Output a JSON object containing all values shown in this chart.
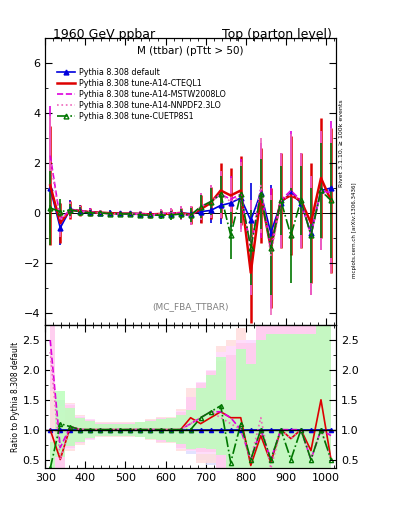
{
  "title_left": "1960 GeV ppbar",
  "title_right": "Top (parton level)",
  "plot_title": "M (ttbar) (pTtt > 50)",
  "watermark": "(MC_FBA_TTBAR)",
  "right_label_top": "Rivet 3.1.10, ≥ 100k events",
  "right_label_bot": "mcplots.cern.ch [arXiv:1306.3436]",
  "ylabel_ratio": "Ratio to Pythia 8.308 default",
  "ylim_main": [
    -4.5,
    7.0
  ],
  "ylim_ratio": [
    0.35,
    2.75
  ],
  "xlim": [
    300,
    1025
  ],
  "yticks_main": [
    -4,
    -2,
    0,
    2,
    4,
    6
  ],
  "yticks_ratio": [
    0.5,
    1.0,
    1.5,
    2.0,
    2.5
  ],
  "x_edges": [
    300,
    325,
    350,
    375,
    400,
    425,
    450,
    475,
    500,
    525,
    550,
    575,
    600,
    625,
    650,
    675,
    700,
    725,
    750,
    775,
    800,
    825,
    850,
    875,
    900,
    925,
    950,
    975,
    1000,
    1025
  ],
  "series": [
    {
      "label": "Pythia 8.308 default",
      "color": "#0000dd",
      "linestyle": "-",
      "marker": "^",
      "fillstyle": "full",
      "markersize": 3.5,
      "linewidth": 1.2,
      "values": [
        1.0,
        -0.6,
        0.15,
        0.08,
        0.03,
        0.01,
        0.0,
        -0.02,
        -0.02,
        -0.03,
        -0.05,
        -0.04,
        -0.03,
        0.0,
        -0.03,
        0.05,
        0.1,
        0.3,
        0.4,
        0.6,
        -0.3,
        0.8,
        -0.8,
        0.4,
        0.8,
        0.4,
        -0.8,
        0.9,
        1.0
      ],
      "errors": [
        1.8,
        0.7,
        0.35,
        0.22,
        0.16,
        0.11,
        0.1,
        0.1,
        0.1,
        0.11,
        0.14,
        0.14,
        0.18,
        0.18,
        0.28,
        0.45,
        0.5,
        0.75,
        0.95,
        1.15,
        1.5,
        1.5,
        1.9,
        1.4,
        1.9,
        1.4,
        1.9,
        1.9,
        2.3
      ]
    },
    {
      "label": "Pythia 8.308 tune-A14-CTEQL1",
      "color": "#dd0000",
      "linestyle": "-",
      "marker": null,
      "markersize": 0,
      "linewidth": 1.8,
      "values": [
        1.1,
        -0.4,
        0.12,
        0.08,
        0.03,
        0.01,
        -0.01,
        -0.03,
        -0.03,
        -0.04,
        -0.06,
        -0.04,
        -0.03,
        0.0,
        -0.08,
        0.15,
        0.4,
        0.9,
        0.7,
        0.9,
        -2.4,
        0.7,
        -1.4,
        0.5,
        0.7,
        0.5,
        -0.4,
        1.4,
        0.5
      ],
      "errors": [
        2.4,
        0.8,
        0.35,
        0.22,
        0.16,
        0.11,
        0.1,
        0.1,
        0.1,
        0.11,
        0.14,
        0.14,
        0.18,
        0.18,
        0.35,
        0.55,
        0.65,
        1.1,
        1.1,
        1.4,
        2.0,
        1.9,
        2.4,
        1.9,
        2.4,
        1.9,
        2.4,
        2.4,
        2.9
      ]
    },
    {
      "label": "Pythia 8.308 tune-A14-MSTW2008LO",
      "color": "#dd00dd",
      "linestyle": "--",
      "marker": null,
      "markersize": 0,
      "linewidth": 1.2,
      "values": [
        2.3,
        -0.25,
        0.12,
        0.08,
        0.03,
        0.0,
        -0.03,
        -0.04,
        -0.04,
        -0.04,
        -0.08,
        -0.04,
        0.0,
        0.0,
        -0.12,
        0.25,
        0.45,
        0.75,
        0.55,
        0.75,
        -1.4,
        0.9,
        -1.4,
        0.5,
        0.9,
        0.5,
        -0.9,
        0.9,
        0.8
      ],
      "errors": [
        2.0,
        0.65,
        0.32,
        0.2,
        0.15,
        0.1,
        0.1,
        0.1,
        0.1,
        0.1,
        0.14,
        0.18,
        0.18,
        0.28,
        0.38,
        0.55,
        0.65,
        0.95,
        0.95,
        1.4,
        1.9,
        1.9,
        2.4,
        1.9,
        2.4,
        1.9,
        2.4,
        2.4,
        2.9
      ]
    },
    {
      "label": "Pythia 8.308 tune-A14-NNPDF2.3LO",
      "color": "#ee66bb",
      "linestyle": ":",
      "marker": null,
      "markersize": 0,
      "linewidth": 1.2,
      "values": [
        2.1,
        -0.3,
        0.12,
        0.08,
        0.02,
        0.0,
        -0.03,
        -0.04,
        -0.04,
        -0.04,
        -0.08,
        -0.04,
        0.0,
        0.0,
        -0.12,
        0.25,
        0.45,
        0.75,
        0.45,
        0.65,
        -1.4,
        1.1,
        -1.7,
        0.5,
        0.75,
        0.5,
        -0.9,
        0.9,
        0.5
      ],
      "errors": [
        1.8,
        0.65,
        0.32,
        0.2,
        0.15,
        0.1,
        0.1,
        0.1,
        0.1,
        0.1,
        0.14,
        0.18,
        0.18,
        0.28,
        0.38,
        0.55,
        0.65,
        0.95,
        0.95,
        1.4,
        1.9,
        1.9,
        2.4,
        1.9,
        2.4,
        1.9,
        2.4,
        2.4,
        2.9
      ]
    },
    {
      "label": "Pythia 8.308 tune-CUETP8S1",
      "color": "#007700",
      "linestyle": "-.",
      "marker": "^",
      "fillstyle": "none",
      "markersize": 3.5,
      "linewidth": 1.2,
      "values": [
        0.2,
        0.05,
        0.12,
        0.05,
        0.0,
        0.0,
        -0.03,
        -0.04,
        -0.04,
        -0.08,
        -0.09,
        -0.09,
        -0.09,
        -0.04,
        -0.09,
        0.25,
        0.45,
        0.75,
        -0.9,
        0.75,
        -1.4,
        0.75,
        -1.4,
        0.5,
        -0.9,
        0.5,
        -0.9,
        0.9,
        0.5
      ],
      "errors": [
        1.5,
        0.5,
        0.25,
        0.17,
        0.12,
        0.09,
        0.09,
        0.09,
        0.09,
        0.11,
        0.13,
        0.16,
        0.18,
        0.2,
        0.28,
        0.45,
        0.55,
        0.75,
        0.95,
        1.15,
        1.5,
        1.4,
        1.9,
        1.4,
        1.9,
        1.4,
        1.9,
        1.9,
        2.3
      ]
    }
  ],
  "ratio_band_colors": [
    "#ddddff",
    "#ffdddd",
    "#ffddff",
    "#ffccee",
    "#bbffbb"
  ],
  "ratio_line_colors": [
    "#0000dd",
    "#dd0000",
    "#dd00dd",
    "#ee66bb",
    "#007700"
  ],
  "ratio_linestyles": [
    "-",
    "-",
    "--",
    ":",
    "-."
  ],
  "ratio_markers": [
    "^",
    null,
    null,
    null,
    "^"
  ],
  "ratio_fillstyles": [
    "full",
    null,
    null,
    null,
    "none"
  ],
  "ratio_values": [
    [
      1.0,
      1.0,
      1.0,
      1.0,
      1.0,
      1.0,
      1.0,
      1.0,
      1.0,
      1.0,
      1.0,
      1.0,
      1.0,
      1.0,
      1.0,
      1.0,
      1.0,
      1.0,
      1.0,
      1.0,
      1.0,
      1.0,
      1.0,
      1.0,
      1.0,
      1.0,
      1.0,
      1.0,
      1.0
    ],
    [
      1.0,
      0.5,
      1.05,
      1.0,
      1.0,
      1.0,
      1.0,
      1.0,
      1.0,
      1.0,
      1.0,
      1.0,
      1.0,
      1.0,
      1.2,
      1.1,
      1.2,
      1.3,
      1.2,
      1.2,
      0.4,
      0.9,
      0.45,
      1.0,
      0.85,
      1.0,
      0.65,
      1.5,
      0.5
    ],
    [
      2.5,
      0.7,
      1.05,
      1.0,
      1.0,
      1.0,
      1.0,
      1.0,
      1.0,
      1.0,
      1.0,
      1.0,
      1.0,
      1.0,
      1.1,
      1.2,
      1.3,
      1.3,
      1.2,
      1.0,
      0.5,
      1.0,
      0.5,
      1.0,
      1.0,
      1.0,
      0.5,
      1.0,
      0.9
    ],
    [
      2.3,
      0.5,
      1.05,
      1.0,
      1.0,
      1.0,
      1.0,
      1.0,
      1.0,
      1.0,
      1.0,
      1.0,
      1.0,
      1.0,
      1.1,
      1.2,
      1.3,
      1.2,
      1.1,
      1.0,
      0.5,
      1.2,
      0.35,
      1.0,
      0.85,
      1.0,
      0.5,
      1.0,
      0.5
    ],
    [
      0.2,
      1.1,
      1.05,
      1.0,
      1.0,
      1.0,
      1.0,
      1.0,
      1.0,
      1.0,
      1.0,
      1.0,
      1.0,
      1.0,
      1.0,
      1.2,
      1.3,
      1.4,
      0.45,
      1.1,
      0.5,
      1.0,
      0.5,
      1.0,
      0.5,
      1.0,
      0.5,
      1.0,
      0.5
    ]
  ],
  "ratio_errors": [
    [
      0.5,
      0.5,
      0.3,
      0.2,
      0.15,
      0.1,
      0.1,
      0.1,
      0.1,
      0.1,
      0.15,
      0.2,
      0.2,
      0.3,
      0.4,
      0.5,
      0.6,
      0.8,
      1.0,
      1.2,
      1.5,
      1.5,
      2.0,
      1.5,
      2.0,
      1.5,
      2.0,
      2.0,
      2.5
    ],
    [
      0.8,
      0.8,
      0.4,
      0.25,
      0.18,
      0.12,
      0.12,
      0.12,
      0.12,
      0.12,
      0.18,
      0.22,
      0.22,
      0.35,
      0.5,
      0.65,
      0.75,
      1.1,
      1.3,
      1.5,
      2.0,
      2.0,
      2.5,
      2.0,
      2.5,
      2.0,
      2.5,
      2.5,
      3.0
    ],
    [
      0.7,
      0.7,
      0.38,
      0.23,
      0.17,
      0.11,
      0.11,
      0.11,
      0.11,
      0.11,
      0.16,
      0.2,
      0.2,
      0.32,
      0.45,
      0.6,
      0.7,
      1.0,
      1.2,
      1.5,
      2.0,
      2.0,
      2.5,
      2.0,
      2.5,
      2.0,
      2.5,
      2.5,
      3.0
    ],
    [
      0.65,
      0.65,
      0.36,
      0.22,
      0.16,
      0.11,
      0.11,
      0.11,
      0.11,
      0.11,
      0.16,
      0.2,
      0.2,
      0.3,
      0.44,
      0.58,
      0.68,
      0.95,
      1.15,
      1.45,
      1.95,
      1.95,
      2.45,
      1.95,
      2.45,
      1.95,
      2.45,
      2.45,
      2.95
    ],
    [
      0.6,
      0.55,
      0.32,
      0.2,
      0.14,
      0.1,
      0.1,
      0.1,
      0.1,
      0.12,
      0.15,
      0.18,
      0.2,
      0.24,
      0.33,
      0.5,
      0.62,
      0.82,
      1.05,
      1.25,
      1.6,
      1.5,
      2.1,
      1.6,
      2.1,
      1.6,
      2.1,
      2.1,
      2.6
    ]
  ]
}
